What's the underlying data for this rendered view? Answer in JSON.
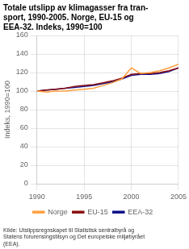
{
  "chart_data": {
    "type": "line",
    "title": "Totale utslipp av klimagasser fra tran-\nsport, 1990-2005. Norge, EU-15 og\nEEA-32. Indeks, 1990=100",
    "y_label": "Indeks, 1990=100",
    "source": "Kilde: Utslippsregnskapet til Statistisk sentralbyrå og\nStatens forurensingstilsyn og Det europeiske miljøbyrået\n(EEA).",
    "x": [
      1990,
      1991,
      1992,
      1993,
      1994,
      1995,
      1996,
      1997,
      1998,
      1999,
      2000,
      2001,
      2002,
      2003,
      2004,
      2005
    ],
    "series": [
      {
        "name": "Norge",
        "color": "#FFA040",
        "values": [
          100,
          99,
          100,
          100,
          101,
          102,
          103,
          106,
          109,
          113,
          125,
          119,
          120,
          122,
          125,
          129
        ]
      },
      {
        "name": "EU-15",
        "color": "#8B1010",
        "values": [
          100,
          101,
          102,
          103,
          105,
          106,
          107,
          109,
          111,
          114,
          118,
          119,
          119,
          120,
          122,
          125
        ]
      },
      {
        "name": "EEA-32",
        "color": "#10108B",
        "values": [
          100,
          101,
          102,
          103,
          104,
          105,
          106,
          108,
          110,
          113,
          117,
          118,
          118,
          119,
          121,
          125
        ]
      }
    ],
    "xlim": [
      1990,
      2005
    ],
    "xticks": [
      1990,
      1995,
      2000,
      2005
    ],
    "ylim": [
      0,
      160
    ],
    "yticks": [
      0,
      20,
      40,
      60,
      80,
      100,
      120,
      140,
      160
    ],
    "grid": true,
    "legend": "bottom"
  }
}
